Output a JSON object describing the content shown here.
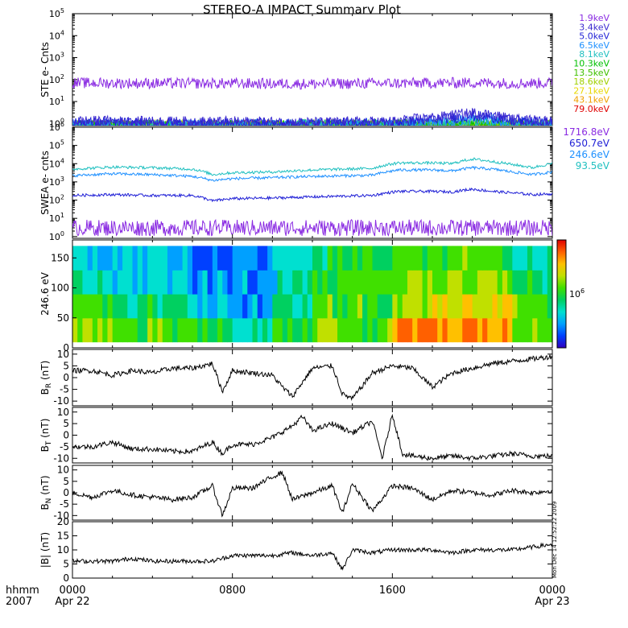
{
  "title": "STEREO-A IMPACT Summary Plot",
  "timestamp": "Mon Dec 14 12:52:22 2009",
  "time_axis": {
    "row1_label": "hhmm",
    "row2_label": "2007",
    "ticks": [
      {
        "hours": 0,
        "time": "0000",
        "date": "Apr 22"
      },
      {
        "hours": 8,
        "time": "0800",
        "date": ""
      },
      {
        "hours": 16,
        "time": "1600",
        "date": ""
      },
      {
        "hours": 24,
        "time": "0000",
        "date": "Apr 23"
      }
    ],
    "range_hours": [
      0,
      24
    ]
  },
  "colors": {
    "purple": "#8a2be2",
    "blue": "#1f1fd6",
    "midblue": "#1e90ff",
    "cyan": "#20c0c0",
    "green": "#00c000",
    "yellow": "#e8d800",
    "orange": "#f0a000",
    "red": "#e00000"
  },
  "chart_data": [
    {
      "id": "ste",
      "type": "line",
      "ylabel": "STE e- Cnts",
      "yscale": "log",
      "ylim": [
        0.8,
        100000
      ],
      "yticks": [
        {
          "value": 1,
          "base": "10",
          "exp": "0"
        },
        {
          "value": 10,
          "base": "10",
          "exp": "1"
        },
        {
          "value": 100,
          "base": "10",
          "exp": "2"
        },
        {
          "value": 1000,
          "base": "10",
          "exp": "3"
        },
        {
          "value": 10000,
          "base": "10",
          "exp": "4"
        },
        {
          "value": 100000,
          "base": "10",
          "exp": "5"
        }
      ],
      "series": [
        {
          "name": "1.9keV",
          "color": "#8a2be2",
          "x": [
            0,
            4,
            8,
            12,
            16,
            18.5,
            20,
            22,
            24
          ],
          "y": [
            70,
            68,
            66,
            64,
            68,
            70,
            72,
            68,
            70
          ]
        },
        {
          "name": "3.4keV",
          "color": "#3c2ad0",
          "x": [
            0,
            4,
            8,
            12,
            16,
            18.5,
            20,
            21,
            22,
            24
          ],
          "y": [
            1.3,
            1.2,
            1.2,
            1.1,
            1.2,
            2.0,
            3.0,
            2.5,
            1.5,
            1.3
          ]
        },
        {
          "name": "5.0keV",
          "color": "#1f1fd6",
          "x": [
            0,
            4,
            8,
            12,
            16,
            18.5,
            20,
            21,
            22,
            24
          ],
          "y": [
            1.1,
            1.1,
            1.0,
            1.0,
            1.1,
            1.6,
            2.2,
            2.0,
            1.3,
            1.1
          ]
        },
        {
          "name": "6.5keV",
          "color": "#1e90ff",
          "x": [
            0,
            8,
            16,
            18.5,
            20,
            21,
            22,
            24
          ],
          "y": [
            0.9,
            0.9,
            0.9,
            1.2,
            1.6,
            1.5,
            1.0,
            0.9
          ]
        },
        {
          "name": "8.1keV",
          "color": "#20c0c0",
          "x": [
            0,
            16,
            18.5,
            20,
            21,
            22,
            24
          ],
          "y": [
            0.85,
            0.85,
            1.0,
            1.3,
            1.2,
            0.9,
            0.85
          ]
        },
        {
          "name": "10.3keV",
          "color": "#00c000",
          "x": [
            0,
            18.5,
            20,
            21,
            24
          ],
          "y": [
            0.8,
            0.9,
            1.1,
            1.0,
            0.8
          ]
        },
        {
          "name": "13.5keV",
          "color": "#40c000",
          "x": [
            0,
            24
          ],
          "y": [
            0.8,
            0.8
          ]
        },
        {
          "name": "18.6keV",
          "color": "#a0d000",
          "x": [
            0,
            24
          ],
          "y": [
            0.8,
            0.8
          ]
        },
        {
          "name": "27.1keV",
          "color": "#e8d800",
          "x": [
            0,
            24
          ],
          "y": [
            0.8,
            0.8
          ]
        },
        {
          "name": "43.1keV",
          "color": "#f0a000",
          "x": [
            0,
            24
          ],
          "y": [
            0.8,
            0.8
          ]
        },
        {
          "name": "79.0keV",
          "color": "#e00000",
          "x": [
            0,
            24
          ],
          "y": [
            0.8,
            0.8
          ]
        }
      ]
    },
    {
      "id": "swea",
      "type": "line",
      "ylabel": "SWEA e- cnts",
      "yscale": "log",
      "ylim": [
        0.8,
        1000000
      ],
      "yticks": [
        {
          "value": 1,
          "base": "10",
          "exp": "0"
        },
        {
          "value": 10,
          "base": "10",
          "exp": "1"
        },
        {
          "value": 100,
          "base": "10",
          "exp": "2"
        },
        {
          "value": 1000,
          "base": "10",
          "exp": "3"
        },
        {
          "value": 10000,
          "base": "10",
          "exp": "4"
        },
        {
          "value": 100000,
          "base": "10",
          "exp": "5"
        },
        {
          "value": 1000000,
          "base": "10",
          "exp": "6"
        }
      ],
      "series": [
        {
          "name": "1716.8eV",
          "color": "#8a2be2",
          "x": [
            0,
            6,
            12,
            18,
            24
          ],
          "y": [
            3,
            3,
            3,
            3,
            3
          ]
        },
        {
          "name": "650.7eV",
          "color": "#1f1fd6",
          "x": [
            0,
            2,
            4,
            6,
            7,
            8,
            10,
            12,
            15,
            16.3,
            18,
            19,
            20,
            21,
            22,
            23,
            24
          ],
          "y": [
            180,
            200,
            180,
            180,
            90,
            120,
            130,
            150,
            180,
            300,
            300,
            280,
            400,
            300,
            250,
            200,
            220
          ]
        },
        {
          "name": "246.6eV",
          "color": "#1e90ff",
          "x": [
            0,
            2,
            4,
            6,
            7,
            8,
            10,
            12,
            15,
            16.3,
            18,
            19,
            20,
            21,
            22,
            23,
            24
          ],
          "y": [
            2200,
            2800,
            2500,
            2000,
            1200,
            1500,
            1700,
            2000,
            2300,
            4500,
            4500,
            4000,
            6000,
            5000,
            3500,
            2500,
            3500
          ]
        },
        {
          "name": "93.5eV",
          "color": "#20c0c0",
          "x": [
            0,
            2,
            4,
            6,
            7,
            8,
            10,
            12,
            15,
            16.3,
            18,
            19,
            20,
            21,
            22,
            23,
            24
          ],
          "y": [
            5000,
            6500,
            6000,
            5000,
            2500,
            3200,
            3500,
            4500,
            5500,
            11000,
            11000,
            10000,
            18000,
            13000,
            9000,
            6000,
            10000
          ]
        }
      ]
    },
    {
      "id": "pad",
      "type": "heatmap",
      "ylabel": "246.6 eV",
      "ylim": [
        0,
        180
      ],
      "yticks": [
        0,
        50,
        100,
        150
      ],
      "colorbar_label_base": "10",
      "colorbar_label_exp": "6",
      "colorbar_scale": [
        "#3000c0",
        "#0040ff",
        "#00a0ff",
        "#00e0d0",
        "#00d060",
        "#40e000",
        "#c0e000",
        "#ffc000",
        "#ff6000",
        "#e00000"
      ],
      "x_bins_hours": [
        0,
        2,
        4,
        6,
        8,
        10,
        12,
        14,
        16,
        18,
        20,
        22,
        24
      ],
      "pitch_bins_deg": [
        10,
        50,
        90,
        130,
        170
      ],
      "levels": [
        [
          0.65,
          0.55,
          0.55,
          0.45,
          0.35,
          0.5,
          0.6,
          0.55,
          0.85,
          0.85,
          0.85,
          0.6
        ],
        [
          0.55,
          0.45,
          0.4,
          0.3,
          0.25,
          0.4,
          0.55,
          0.55,
          0.65,
          0.7,
          0.75,
          0.55
        ],
        [
          0.4,
          0.35,
          0.3,
          0.2,
          0.2,
          0.35,
          0.5,
          0.55,
          0.6,
          0.6,
          0.6,
          0.45
        ],
        [
          0.3,
          0.3,
          0.25,
          0.15,
          0.15,
          0.3,
          0.45,
          0.5,
          0.55,
          0.55,
          0.5,
          0.4
        ]
      ]
    },
    {
      "id": "br",
      "type": "line",
      "ylabel_main": "B",
      "ylabel_sub": "R",
      "ylabel_unit": " (nT)",
      "ylim": [
        -12,
        12
      ],
      "yticks": [
        -10,
        -5,
        0,
        5,
        10
      ],
      "x": [
        0,
        1,
        2,
        3,
        4,
        5,
        6,
        7,
        7.5,
        8,
        9,
        10,
        10.5,
        11,
        12,
        13,
        13.5,
        14,
        15,
        16,
        17,
        18,
        19,
        20,
        21,
        22,
        23,
        24
      ],
      "y": [
        3,
        3,
        1,
        3,
        2,
        4,
        4,
        6,
        -6,
        3,
        2,
        1,
        -4,
        -8,
        4,
        5,
        -7,
        -9,
        2,
        5,
        4,
        -4,
        2,
        4,
        6,
        7,
        8,
        9
      ]
    },
    {
      "id": "bt",
      "type": "line",
      "ylabel_main": "B",
      "ylabel_sub": "T",
      "ylabel_unit": " (nT)",
      "ylim": [
        -12,
        12
      ],
      "yticks": [
        -10,
        -5,
        0,
        5,
        10
      ],
      "x": [
        0,
        1,
        2,
        3,
        4,
        5,
        6,
        7,
        7.5,
        8,
        9,
        10,
        11,
        11.5,
        12,
        13,
        14,
        15,
        15.5,
        16,
        16.5,
        17,
        18,
        19,
        20,
        21,
        22,
        23,
        24
      ],
      "y": [
        -5,
        -5,
        -3,
        -6,
        -6,
        -7,
        -7,
        -3,
        -8,
        -4,
        -4,
        -1,
        4,
        8,
        2,
        5,
        1,
        6,
        -10,
        9,
        -8,
        -9,
        -10,
        -9,
        -10,
        -9,
        -8,
        -9,
        -9
      ]
    },
    {
      "id": "bn",
      "type": "line",
      "ylabel_main": "B",
      "ylabel_sub": "N",
      "ylabel_unit": " (nT)",
      "ylim": [
        -12,
        12
      ],
      "yticks": [
        -10,
        -5,
        0,
        5,
        10
      ],
      "x": [
        0,
        1,
        2,
        3,
        4,
        5,
        6,
        7,
        7.5,
        8,
        9,
        10,
        10.5,
        11,
        12,
        13,
        13.5,
        14,
        15,
        16,
        17,
        18,
        19,
        20,
        21,
        22,
        23,
        24
      ],
      "y": [
        0,
        -2,
        1,
        -1,
        -2,
        -3,
        -2,
        3,
        -10,
        2,
        2,
        7,
        9,
        -3,
        0,
        3,
        -9,
        4,
        -8,
        3,
        2,
        -3,
        1,
        0,
        -1,
        1,
        0,
        1
      ]
    },
    {
      "id": "bmag",
      "type": "line",
      "ylabel_main": "|B|",
      "ylabel_sub": "",
      "ylabel_unit": " (nT)",
      "ylim": [
        0,
        20
      ],
      "yticks": [
        0,
        5,
        10,
        15,
        20
      ],
      "x": [
        0,
        1,
        2,
        3,
        4,
        5,
        6,
        7,
        8,
        9,
        10,
        11,
        12,
        13,
        13.5,
        14,
        15,
        16,
        17,
        18,
        19,
        20,
        21,
        22,
        23,
        24
      ],
      "y": [
        6,
        6,
        6,
        7,
        6,
        6,
        6,
        6,
        8,
        8,
        8,
        9,
        8,
        9,
        3,
        10,
        9,
        10,
        10,
        10,
        9,
        10,
        10,
        10,
        11,
        12
      ]
    }
  ]
}
